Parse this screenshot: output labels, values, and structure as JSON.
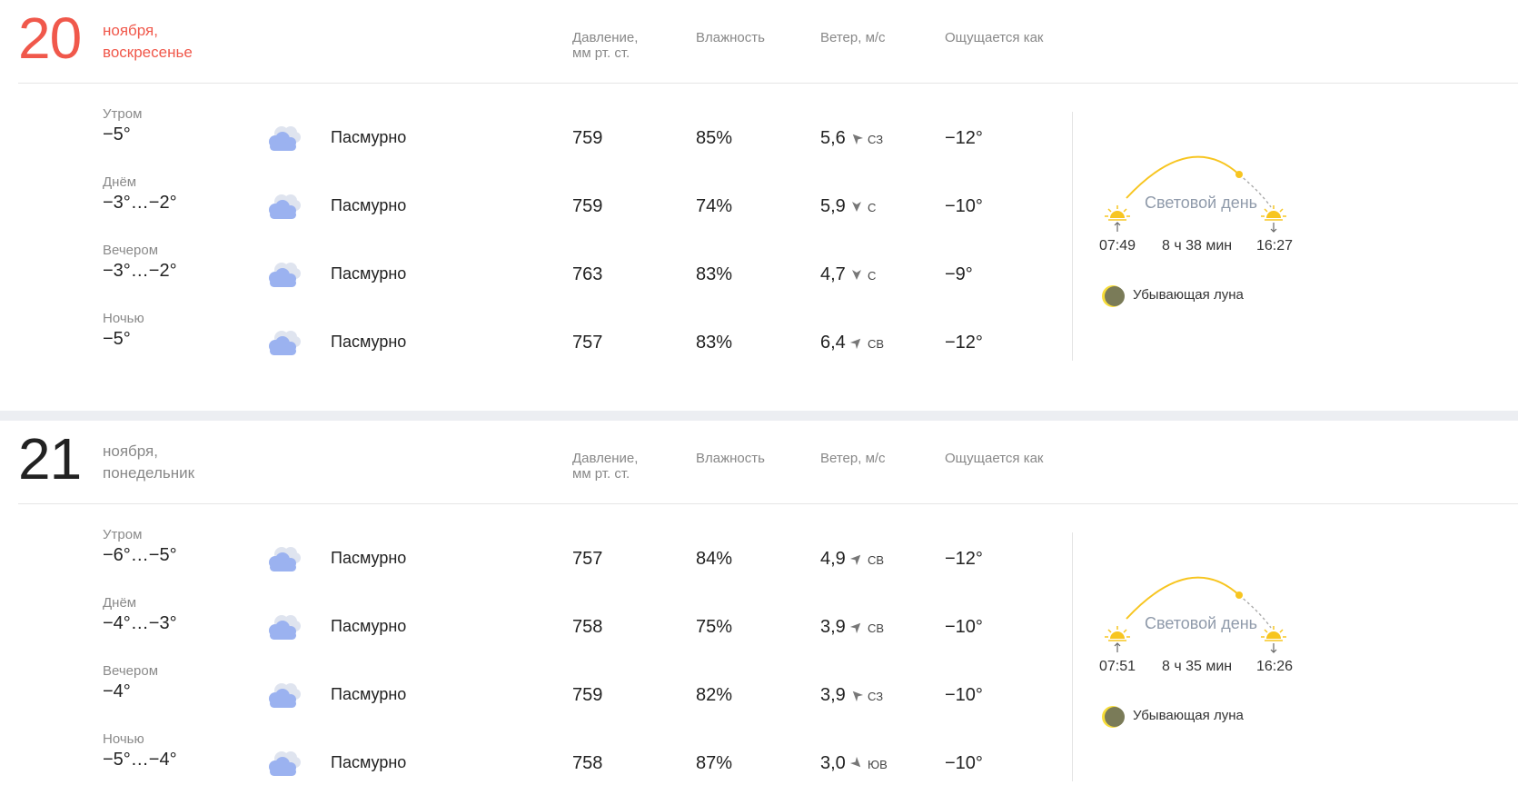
{
  "columns": {
    "pressure": "Давление,",
    "pressure_unit": "мм рт. ст.",
    "humidity": "Влажность",
    "wind": "Ветер, м/с",
    "feels": "Ощущается как"
  },
  "days": [
    {
      "day": "20",
      "month": "ноября,",
      "weekday": "воскресенье",
      "parts": [
        {
          "name": "Утром",
          "temp": "−5°",
          "cond": "Пасмурно",
          "pressure": "759",
          "humidity": "85%",
          "wind": "5,6",
          "dir": "СЗ",
          "feels": "−12°"
        },
        {
          "name": "Днём",
          "temp": "−3°…−2°",
          "cond": "Пасмурно",
          "pressure": "759",
          "humidity": "74%",
          "wind": "5,9",
          "dir": "С",
          "feels": "−10°"
        },
        {
          "name": "Вечером",
          "temp": "−3°…−2°",
          "cond": "Пасмурно",
          "pressure": "763",
          "humidity": "83%",
          "wind": "4,7",
          "dir": "С",
          "feels": "−9°"
        },
        {
          "name": "Ночью",
          "temp": "−5°",
          "cond": "Пасмурно",
          "pressure": "757",
          "humidity": "83%",
          "wind": "6,4",
          "dir": "СВ",
          "feels": "−12°"
        }
      ],
      "sun": {
        "label": "Световой день",
        "sunrise": "07:49",
        "sunset": "16:27",
        "duration": "8 ч 38 мин"
      },
      "moon": "Убывающая луна"
    },
    {
      "day": "21",
      "month": "ноября,",
      "weekday": "понедельник",
      "parts": [
        {
          "name": "Утром",
          "temp": "−6°…−5°",
          "cond": "Пасмурно",
          "pressure": "757",
          "humidity": "84%",
          "wind": "4,9",
          "dir": "СВ",
          "feels": "−12°"
        },
        {
          "name": "Днём",
          "temp": "−4°…−3°",
          "cond": "Пасмурно",
          "pressure": "758",
          "humidity": "75%",
          "wind": "3,9",
          "dir": "СВ",
          "feels": "−10°"
        },
        {
          "name": "Вечером",
          "temp": "−4°",
          "cond": "Пасмурно",
          "pressure": "759",
          "humidity": "82%",
          "wind": "3,9",
          "dir": "СЗ",
          "feels": "−10°"
        },
        {
          "name": "Ночью",
          "temp": "−5°…−4°",
          "cond": "Пасмурно",
          "pressure": "758",
          "humidity": "87%",
          "wind": "3,0",
          "dir": "ЮВ",
          "feels": "−10°"
        }
      ],
      "sun": {
        "label": "Световой день",
        "sunrise": "07:51",
        "sunset": "16:26",
        "duration": "8 ч 35 мин"
      },
      "moon": "Убывающая луна"
    }
  ],
  "colors": {
    "weekend": "#f0584b",
    "sun_arc": "#f7c520",
    "cloud": "#9bb2f0",
    "moon": "#7a7b58"
  },
  "icons": {
    "condition": "overcast-cloud-icon",
    "wind": "wind-direction-arrow-icon",
    "sunrise": "sunrise-icon",
    "sunset": "sunset-icon",
    "moon": "waning-moon-icon"
  }
}
